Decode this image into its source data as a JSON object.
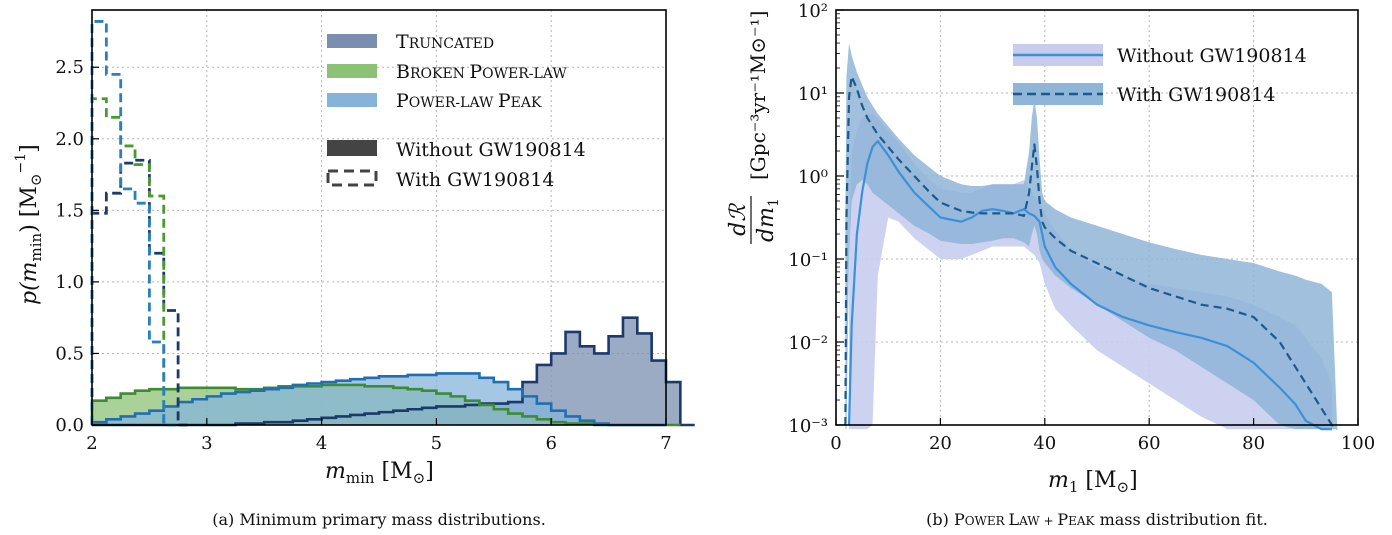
{
  "chart_data": [
    {
      "type": "histogram",
      "xlabel": "m_min [M⊙]",
      "ylabel": "p(m_min) [M⊙⁻¹]",
      "xlim": [
        2,
        7
      ],
      "ylim": [
        0,
        2.9
      ],
      "xticks": [
        "2",
        "3",
        "4",
        "5",
        "6",
        "7"
      ],
      "yticks": [
        "0.0",
        "0.5",
        "1.0",
        "1.5",
        "2.0",
        "2.5"
      ],
      "grid": true,
      "legend_position": "top-right",
      "legend_models": [
        {
          "label": "Truncated",
          "color": "#7a8fb0"
        },
        {
          "label": "Broken Power-law",
          "color": "#8cc276"
        },
        {
          "label": "Power-law Peak",
          "color": "#86b4d9"
        }
      ],
      "legend_styles": [
        {
          "label": "Without GW190814",
          "style": "solid"
        },
        {
          "label": "With GW190814",
          "style": "dashed"
        }
      ],
      "caption": "(a) Minimum primary mass distributions.",
      "bin_width": 0.125,
      "x_start": 2.0,
      "series": [
        {
          "model": "Truncated",
          "variant": "without",
          "color_fill": "#7a8fb0",
          "color_line": "#1b3a6b",
          "values": [
            0,
            0,
            0,
            0,
            0,
            0,
            0,
            0,
            0,
            0,
            0.01,
            0.01,
            0.02,
            0.02,
            0.03,
            0.04,
            0.05,
            0.06,
            0.07,
            0.08,
            0.09,
            0.1,
            0.11,
            0.12,
            0.13,
            0.13,
            0.14,
            0.15,
            0.15,
            0.16,
            0.3,
            0.42,
            0.5,
            0.65,
            0.55,
            0.5,
            0.62,
            0.75,
            0.64,
            0.45,
            0.3,
            0
          ]
        },
        {
          "model": "Broken Power-law",
          "variant": "without",
          "color_fill": "#8cc276",
          "color_line": "#3e8a35",
          "values": [
            0.17,
            0.19,
            0.22,
            0.24,
            0.25,
            0.25,
            0.26,
            0.26,
            0.26,
            0.26,
            0.25,
            0.25,
            0.26,
            0.27,
            0.27,
            0.27,
            0.28,
            0.28,
            0.28,
            0.27,
            0.27,
            0.26,
            0.25,
            0.24,
            0.22,
            0.2,
            0.17,
            0.14,
            0.11,
            0.08,
            0.06,
            0.04,
            0.02,
            0.01,
            0.01,
            0,
            0,
            0,
            0,
            0,
            0
          ]
        },
        {
          "model": "Power-law Peak",
          "variant": "without",
          "color_fill": "#86b4d9",
          "color_line": "#1f6fb2",
          "values": [
            0.02,
            0.04,
            0.06,
            0.08,
            0.1,
            0.13,
            0.16,
            0.18,
            0.2,
            0.22,
            0.23,
            0.24,
            0.25,
            0.26,
            0.28,
            0.29,
            0.3,
            0.31,
            0.32,
            0.33,
            0.34,
            0.34,
            0.35,
            0.35,
            0.36,
            0.36,
            0.36,
            0.33,
            0.3,
            0.25,
            0.2,
            0.15,
            0.1,
            0.06,
            0.03,
            0.01,
            0,
            0,
            0,
            0
          ]
        },
        {
          "model": "Truncated",
          "variant": "with",
          "color_line": "#1b3a6b",
          "values": [
            1.48,
            1.62,
            1.83,
            1.85,
            1.2,
            0.8,
            0
          ]
        },
        {
          "model": "Broken Power-law",
          "variant": "with",
          "color_line": "#4a9a30",
          "values": [
            2.28,
            2.15,
            1.95,
            1.82,
            1.6,
            0.0
          ]
        },
        {
          "model": "Power-law Peak",
          "variant": "with",
          "color_line": "#2b7fbf",
          "values": [
            2.82,
            2.45,
            1.65,
            1.55,
            0.58,
            0.0
          ]
        }
      ]
    },
    {
      "type": "line",
      "xlabel": "m₁ [M⊙]",
      "ylabel": "dR/dm₁ [Gpc⁻³yr⁻¹M⊙⁻¹]",
      "xlim": [
        0,
        100
      ],
      "ylim_log10": [
        -3,
        2
      ],
      "y_scale": "log",
      "xticks": [
        "0",
        "20",
        "40",
        "60",
        "80",
        "100"
      ],
      "yticks": [
        "10⁻³",
        "10⁻²",
        "10⁻¹",
        "10⁰",
        "10¹",
        "10²"
      ],
      "grid": true,
      "legend_position": "top-right",
      "caption": "(b) Power Law + Peak mass distribution fit.",
      "series": [
        {
          "name": "Without GW190814",
          "style": "solid",
          "color": "#3a91d9",
          "band_color": "#c8cdf0",
          "x": [
            2.5,
            3,
            4,
            5,
            6,
            7,
            8,
            10,
            12,
            15,
            18,
            20,
            24,
            26,
            28,
            30,
            32,
            34,
            36,
            37,
            38,
            39,
            40,
            42,
            45,
            50,
            55,
            60,
            65,
            70,
            75,
            80,
            85,
            88,
            90,
            93,
            95
          ],
          "log10_y": [
            -3.0,
            -1.8,
            -0.7,
            -0.2,
            0.15,
            0.35,
            0.42,
            0.25,
            0.05,
            -0.2,
            -0.38,
            -0.5,
            -0.55,
            -0.5,
            -0.42,
            -0.4,
            -0.42,
            -0.45,
            -0.4,
            -0.45,
            -0.48,
            -0.55,
            -0.85,
            -1.1,
            -1.3,
            -1.55,
            -1.7,
            -1.8,
            -1.88,
            -1.95,
            -2.05,
            -2.25,
            -2.55,
            -2.75,
            -2.95,
            -3.05,
            -3.2
          ],
          "band_low_log10": [
            -3.5,
            -3.5,
            -3.5,
            -3.5,
            -3.5,
            -3.0,
            -1.2,
            -0.5,
            -0.55,
            -0.75,
            -0.9,
            -1.0,
            -1.0,
            -0.95,
            -0.9,
            -0.85,
            -0.85,
            -0.85,
            -0.85,
            -0.9,
            -0.95,
            -1.05,
            -1.3,
            -1.6,
            -1.8,
            -2.1,
            -2.3,
            -2.5,
            -2.7,
            -2.9,
            -3.5,
            -3.5,
            -3.5,
            -3.5,
            -3.5,
            -3.5,
            -3.5
          ],
          "band_high_log10": [
            -1.0,
            0.3,
            0.55,
            0.7,
            0.75,
            0.75,
            0.7,
            0.55,
            0.4,
            0.15,
            -0.05,
            -0.15,
            -0.2,
            -0.2,
            -0.15,
            -0.1,
            -0.1,
            -0.1,
            -0.05,
            -0.15,
            -0.25,
            -0.3,
            -0.45,
            -0.65,
            -0.9,
            -1.1,
            -1.2,
            -1.3,
            -1.35,
            -1.4,
            -1.45,
            -1.55,
            -1.7,
            -1.8,
            -1.95,
            -2.2,
            -2.5
          ]
        },
        {
          "name": "With GW190814",
          "style": "dashed",
          "color": "#1b5a8c",
          "band_color": "#8fb5d8",
          "x": [
            1.8,
            2,
            2.5,
            3,
            4,
            5,
            6,
            7,
            8,
            10,
            12,
            15,
            18,
            20,
            24,
            26,
            28,
            30,
            32,
            34,
            36,
            37,
            37.5,
            38,
            38.5,
            39,
            39.5,
            40,
            42,
            45,
            50,
            55,
            60,
            65,
            70,
            75,
            80,
            85,
            88,
            90,
            93,
            95,
            96
          ],
          "log10_y": [
            -3.0,
            -0.5,
            0.95,
            1.2,
            1.05,
            0.85,
            0.7,
            0.6,
            0.5,
            0.35,
            0.2,
            0.0,
            -0.2,
            -0.32,
            -0.42,
            -0.44,
            -0.45,
            -0.45,
            -0.45,
            -0.45,
            -0.48,
            -0.2,
            0.1,
            0.38,
            0.1,
            -0.3,
            -0.55,
            -0.62,
            -0.75,
            -0.9,
            -1.05,
            -1.2,
            -1.35,
            -1.45,
            -1.55,
            -1.6,
            -1.7,
            -2.0,
            -2.3,
            -2.5,
            -2.8,
            -3.0,
            -3.2
          ],
          "band_low_log10": [
            -3.5,
            -3.5,
            -1.0,
            -0.3,
            -0.1,
            -0.05,
            -0.1,
            -0.2,
            -0.25,
            -0.35,
            -0.45,
            -0.6,
            -0.7,
            -0.78,
            -0.82,
            -0.82,
            -0.8,
            -0.78,
            -0.75,
            -0.75,
            -0.8,
            -0.85,
            -0.7,
            -0.6,
            -0.7,
            -0.9,
            -1.0,
            -1.05,
            -1.2,
            -1.35,
            -1.55,
            -1.75,
            -1.95,
            -2.1,
            -2.3,
            -2.5,
            -2.7,
            -3.0,
            -3.5,
            -3.5,
            -3.5,
            -3.5,
            -3.5
          ],
          "band_high_log10": [
            -0.5,
            1.2,
            1.6,
            1.45,
            1.25,
            1.1,
            0.95,
            0.85,
            0.75,
            0.6,
            0.45,
            0.25,
            0.1,
            0.0,
            -0.1,
            -0.12,
            -0.12,
            -0.1,
            -0.1,
            -0.1,
            -0.1,
            0.3,
            0.7,
            0.92,
            0.7,
            0.2,
            -0.2,
            -0.3,
            -0.4,
            -0.5,
            -0.6,
            -0.7,
            -0.8,
            -0.88,
            -0.95,
            -1.0,
            -1.05,
            -1.15,
            -1.2,
            -1.25,
            -1.3,
            -1.4,
            -3.0
          ]
        }
      ]
    }
  ],
  "panel_a": {
    "legend": {
      "t1_a": "T",
      "t1_b": "RUNCATED",
      "t2_a": "B",
      "t2_b": "ROKEN ",
      "t2_c": "P",
      "t2_d": "OWER-LAW",
      "t3_a": "P",
      "t3_b": "OWER-LAW ",
      "t3_c": "P",
      "t3_d": "EAK",
      "solid": "Without GW190814",
      "dashed": "With GW190814"
    },
    "xlabel_main": "m",
    "xlabel_sub": "min",
    "xlabel_unit": " [M",
    "xlabel_sun": "⊙",
    "xlabel_close": "]",
    "ylabel": "p(m",
    "ylabel_sub": "min",
    "ylabel_rest": ") [M",
    "ylabel_sun": "⊙",
    "ylabel_sup": "−1",
    "ylabel_close": "]",
    "caption": "(a) Minimum primary mass distributions."
  },
  "panel_b": {
    "legend": {
      "without": "Without GW190814",
      "with": "With GW190814"
    },
    "xlabel": "m",
    "xlabel_sub": "1",
    "xlabel_unit": " [M",
    "xlabel_sun": "⊙",
    "xlabel_close": "]",
    "ylabel_num": "dℛ",
    "ylabel_den": "dm",
    "ylabel_den_sub": "1",
    "ylabel_units": "[Gpc⁻³yr⁻¹M⊙⁻¹]",
    "caption_a": "(b) ",
    "caption_b": "P",
    "caption_c": "OWER ",
    "caption_d": "L",
    "caption_e": "AW + ",
    "caption_f": "P",
    "caption_g": "EAK",
    "caption_h": " mass distribution fit."
  }
}
